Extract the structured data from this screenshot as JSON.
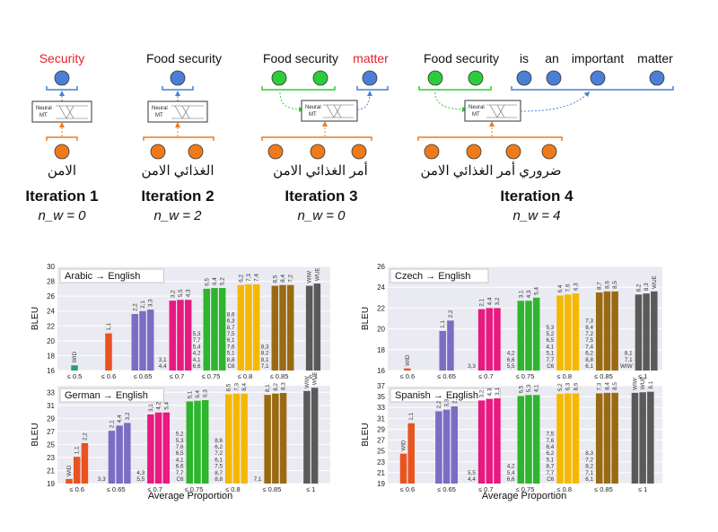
{
  "diagram": {
    "iterations": [
      {
        "title": "Iteration 1",
        "nw": "n_w = 0",
        "english": [
          {
            "text": "Security",
            "color": "#e8202a"
          }
        ],
        "arabic": "الامن"
      },
      {
        "title": "Iteration 2",
        "nw": "n_w = 2",
        "english": [
          {
            "text": "Food security",
            "color": "#111111"
          }
        ],
        "arabic": "الغذائي الامن"
      },
      {
        "title": "Iteration 3",
        "nw": "n_w = 0",
        "english": [
          {
            "text": "Food security",
            "color": "#111111"
          },
          {
            "text": "matter",
            "color": "#e8202a"
          }
        ],
        "arabic": "أمر الغذائي الامن"
      },
      {
        "title": "Iteration 4",
        "nw": "n_w = 4",
        "english": [
          {
            "text": "Food security",
            "color": "#111111"
          },
          {
            "text": "is",
            "color": "#111111"
          },
          {
            "text": "an",
            "color": "#111111"
          },
          {
            "text": "important",
            "color": "#111111"
          },
          {
            "text": "matter",
            "color": "#111111"
          }
        ],
        "arabic": "ضروري أمر الغذائي الامن"
      }
    ],
    "nmt_label_1": "Neural",
    "nmt_label_2": "MT",
    "colors": {
      "blue": "#4a7fd4",
      "green": "#2ecc3a",
      "orange": "#f07a1a",
      "red": "#e8202a"
    }
  },
  "chart_data": [
    {
      "type": "bar",
      "title": "Arabic → English",
      "ylabel": "BLEU",
      "xlabel": "",
      "ylim": [
        16,
        30
      ],
      "yticks": [
        16,
        18,
        20,
        22,
        24,
        26,
        28,
        30
      ],
      "groups": [
        {
          "label": "≤ 0.5",
          "color": "#2a9d6f",
          "bars": [
            {
              "value": 16.7,
              "label": "WID"
            }
          ]
        },
        {
          "label": "≤ 0.6",
          "color": "#e8531f",
          "bars": [
            {
              "value": 21.0,
              "label": "1,1"
            }
          ]
        },
        {
          "label": "≤ 0.65",
          "color": "#7b6cc4",
          "bars": [
            {
              "value": 23.6,
              "label": "2,2"
            },
            {
              "value": 24.0,
              "label": "2,1"
            },
            {
              "value": 24.2,
              "label": "3,3"
            }
          ]
        },
        {
          "label": "≤ 0.7",
          "color": "#e8197f",
          "side": [
            "3,1",
            "4,4"
          ],
          "bars": [
            {
              "value": 25.4,
              "label": "3,2"
            },
            {
              "value": 25.5,
              "label": "5,5"
            },
            {
              "value": 25.5,
              "label": "4,3"
            }
          ]
        },
        {
          "label": "≤ 0.75",
          "color": "#2db52d",
          "side": [
            "5,3",
            "7,7",
            "5,4",
            "4,2",
            "4,1",
            "6,6"
          ],
          "bars": [
            {
              "value": 27.0,
              "label": "6,5"
            },
            {
              "value": 27.1,
              "label": "6,4"
            },
            {
              "value": 27.1,
              "label": "5,2"
            }
          ]
        },
        {
          "label": "≤ 0.8",
          "color": "#f5b800",
          "side": [
            "8,6",
            "6,3",
            "8,7",
            "7,5",
            "6,1",
            "7,6",
            "5,1",
            "8,8",
            "C6"
          ],
          "bars": [
            {
              "value": 27.5,
              "label": "6,2"
            },
            {
              "value": 27.6,
              "label": "7,3"
            },
            {
              "value": 27.6,
              "label": "7,4"
            }
          ]
        },
        {
          "label": "≤ 0.85",
          "color": "#9a6a12",
          "side": [
            "8,3",
            "8,2",
            "8,1",
            "7,1"
          ],
          "bars": [
            {
              "value": 27.4,
              "label": "8,5"
            },
            {
              "value": 27.5,
              "label": "8,4"
            },
            {
              "value": 27.5,
              "label": "7,2"
            }
          ]
        },
        {
          "label": "≤ 1",
          "color": "#5a5a5a",
          "bars": [
            {
              "value": 27.4,
              "label": "WIW"
            },
            {
              "value": 27.7,
              "label": "WUE"
            }
          ]
        }
      ]
    },
    {
      "type": "bar",
      "title": "Czech → English",
      "ylabel": "BLEU",
      "xlabel": "",
      "ylim": [
        16,
        26
      ],
      "yticks": [
        16,
        18,
        20,
        22,
        24,
        26
      ],
      "groups": [
        {
          "label": "≤ 0.6",
          "color": "#e8531f",
          "bars": [
            {
              "value": 16.2,
              "label": "WID"
            }
          ]
        },
        {
          "label": "≤ 0.65",
          "color": "#7b6cc4",
          "bars": [
            {
              "value": 19.8,
              "label": "1,1"
            },
            {
              "value": 20.8,
              "label": "2,2"
            }
          ]
        },
        {
          "label": "≤ 0.7",
          "color": "#e8197f",
          "side": [
            "3,3"
          ],
          "bars": [
            {
              "value": 21.9,
              "label": "2,1"
            },
            {
              "value": 22.0,
              "label": "4,4"
            },
            {
              "value": 22.0,
              "label": "3,2"
            }
          ]
        },
        {
          "label": "≤ 0.75",
          "color": "#2db52d",
          "side": [
            "4,2",
            "6,6",
            "5,5"
          ],
          "bars": [
            {
              "value": 22.7,
              "label": "3,1"
            },
            {
              "value": 22.7,
              "label": "4,3"
            },
            {
              "value": 23.0,
              "label": "5,4"
            }
          ]
        },
        {
          "label": "≤ 0.8",
          "color": "#f5b800",
          "side": [
            "5,3",
            "5,2",
            "6,5",
            "4,1",
            "5,1",
            "7,7",
            "C6"
          ],
          "bars": [
            {
              "value": 23.2,
              "label": "6,4"
            },
            {
              "value": 23.3,
              "label": "7,6"
            },
            {
              "value": 23.4,
              "label": "6,3"
            }
          ]
        },
        {
          "label": "≤ 0.85",
          "color": "#9a6a12",
          "side": [
            "7,3",
            "8,4",
            "7,2",
            "7,5",
            "7,4",
            "6,2",
            "8,8",
            "6,1"
          ],
          "bars": [
            {
              "value": 23.5,
              "label": "8,7"
            },
            {
              "value": 23.6,
              "label": "8,6"
            },
            {
              "value": 23.6,
              "label": "8,5"
            }
          ]
        },
        {
          "label": "≤ 1",
          "color": "#5a5a5a",
          "side": [
            "8,1",
            "7,1",
            "WIW"
          ],
          "bars": [
            {
              "value": 23.3,
              "label": "8,2"
            },
            {
              "value": 23.4,
              "label": "8,3"
            },
            {
              "value": 23.6,
              "label": "WUE"
            }
          ]
        }
      ]
    },
    {
      "type": "bar",
      "title": "German → English",
      "ylabel": "BLEU",
      "xlabel": "Average Proportion",
      "ylim": [
        19,
        34
      ],
      "yticks": [
        19,
        21,
        23,
        25,
        27,
        29,
        31,
        33
      ],
      "groups": [
        {
          "label": "≤ 0.6",
          "color": "#e8531f",
          "bars": [
            {
              "value": 19.7,
              "label": "WID"
            },
            {
              "value": 23.1,
              "label": "1,1"
            },
            {
              "value": 25.2,
              "label": "2,2"
            }
          ]
        },
        {
          "label": "≤ 0.65",
          "color": "#7b6cc4",
          "side": [
            "3,3"
          ],
          "bars": [
            {
              "value": 27.1,
              "label": "2,1"
            },
            {
              "value": 27.9,
              "label": "4,4"
            },
            {
              "value": 28.3,
              "label": "3,2"
            }
          ]
        },
        {
          "label": "≤ 0.7",
          "color": "#e8197f",
          "side": [
            "4,3",
            "5,5"
          ],
          "bars": [
            {
              "value": 29.6,
              "label": "3,1"
            },
            {
              "value": 29.9,
              "label": "4,2"
            },
            {
              "value": 29.9,
              "label": "5,4"
            }
          ]
        },
        {
          "label": "≤ 0.75",
          "color": "#2db52d",
          "side": [
            "5,2",
            "5,3",
            "7,6",
            "6,5",
            "4,1",
            "6,6",
            "7,7",
            "C6"
          ],
          "bars": [
            {
              "value": 31.6,
              "label": "5,1"
            },
            {
              "value": 31.7,
              "label": "6,4"
            },
            {
              "value": 31.8,
              "label": "6,3"
            }
          ]
        },
        {
          "label": "≤ 0.8",
          "color": "#f5b800",
          "side": [
            "8,6",
            "6,2",
            "7,2",
            "6,1",
            "7,5",
            "8,7",
            "8,8"
          ],
          "bars": [
            {
              "value": 32.7,
              "label": "8,5"
            },
            {
              "value": 32.8,
              "label": "7,3"
            },
            {
              "value": 32.8,
              "label": "8,4"
            }
          ]
        },
        {
          "label": "≤ 0.85",
          "color": "#9a6a12",
          "side": [
            "7,1"
          ],
          "bars": [
            {
              "value": 32.6,
              "label": "8,1"
            },
            {
              "value": 32.8,
              "label": "8,2"
            },
            {
              "value": 32.9,
              "label": "8,3"
            }
          ]
        },
        {
          "label": "≤ 1",
          "color": "#5a5a5a",
          "bars": [
            {
              "value": 33.2,
              "label": "WIW"
            },
            {
              "value": 33.7,
              "label": "WUE"
            }
          ]
        }
      ]
    },
    {
      "type": "bar",
      "title": "Spanish → English",
      "ylabel": "BLEU",
      "xlabel": "Average Proportion",
      "ylim": [
        19,
        37
      ],
      "yticks": [
        19,
        21,
        23,
        25,
        27,
        29,
        31,
        33,
        35,
        37
      ],
      "groups": [
        {
          "label": "≤ 0.6",
          "color": "#e8531f",
          "bars": [
            {
              "value": 24.5,
              "label": "WID"
            },
            {
              "value": 30.1,
              "label": "1,1"
            }
          ]
        },
        {
          "label": "≤ 0.65",
          "color": "#7b6cc4",
          "bars": [
            {
              "value": 32.3,
              "label": "2,2"
            },
            {
              "value": 32.6,
              "label": "3,3"
            },
            {
              "value": 33.2,
              "label": "2,1"
            }
          ]
        },
        {
          "label": "≤ 0.7",
          "color": "#e8197f",
          "side": [
            "5,5",
            "4,4"
          ],
          "bars": [
            {
              "value": 34.3,
              "label": "3,2"
            },
            {
              "value": 34.6,
              "label": "4,3"
            },
            {
              "value": 34.7,
              "label": "3,1"
            }
          ]
        },
        {
          "label": "≤ 0.75",
          "color": "#2db52d",
          "side": [
            "4,2",
            "5,4",
            "6,6"
          ],
          "bars": [
            {
              "value": 35.1,
              "label": "6,5"
            },
            {
              "value": 35.3,
              "label": "5,3"
            },
            {
              "value": 35.3,
              "label": "4,1"
            }
          ]
        },
        {
          "label": "≤ 0.8",
          "color": "#f5b800",
          "side": [
            "7,5",
            "7,6",
            "6,4",
            "6,2",
            "5,1",
            "8,7",
            "7,7",
            "C6"
          ],
          "bars": [
            {
              "value": 35.5,
              "label": "5,2"
            },
            {
              "value": 35.6,
              "label": "6,3"
            },
            {
              "value": 35.6,
              "label": "8,6"
            }
          ]
        },
        {
          "label": "≤ 0.85",
          "color": "#9a6a12",
          "side": [
            "8,3",
            "7,2",
            "8,2",
            "7,1",
            "6,1"
          ],
          "bars": [
            {
              "value": 35.6,
              "label": "7,3"
            },
            {
              "value": 35.7,
              "label": "8,4"
            },
            {
              "value": 35.7,
              "label": "8,5"
            }
          ]
        },
        {
          "label": "≤ 1",
          "color": "#5a5a5a",
          "bars": [
            {
              "value": 35.7,
              "label": "WIW"
            },
            {
              "value": 35.8,
              "label": "WUE"
            },
            {
              "value": 35.9,
              "label": "8,1"
            }
          ]
        }
      ]
    }
  ]
}
